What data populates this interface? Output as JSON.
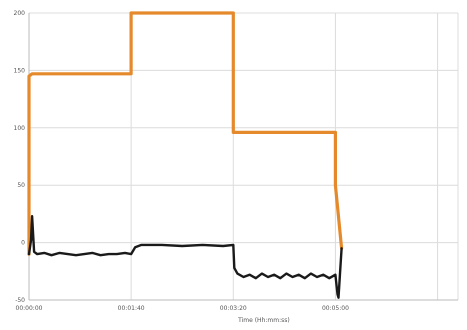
{
  "chart_data": {
    "type": "line",
    "xlabel": "Time (Hh:mm:ss)",
    "ylabel": "",
    "xlim": [
      0,
      420
    ],
    "ylim": [
      -50,
      200
    ],
    "x_ticks": [
      {
        "value": 0,
        "label": "00:00:00"
      },
      {
        "value": 100,
        "label": "00:01:40"
      },
      {
        "value": 200,
        "label": "00:03:20"
      },
      {
        "value": 300,
        "label": "00:05:00"
      }
    ],
    "y_ticks": [
      {
        "value": 200,
        "label": "200"
      },
      {
        "value": 150,
        "label": "150"
      },
      {
        "value": 100,
        "label": "100"
      },
      {
        "value": 50,
        "label": "50"
      },
      {
        "value": 0,
        "label": "0"
      },
      {
        "value": -50,
        "label": "-50"
      }
    ],
    "grid": true,
    "series": [
      {
        "color": "#e58a2c",
        "x": [
          0,
          0,
          3,
          100,
          100,
          200,
          200,
          300,
          300,
          306
        ],
        "y": [
          -10,
          145,
          147,
          147,
          200,
          200,
          96,
          96,
          50,
          -5
        ]
      },
      {
        "color": "#1a1a1a",
        "x": [
          0,
          2,
          3,
          5,
          8,
          15,
          22,
          30,
          38,
          46,
          54,
          62,
          70,
          78,
          86,
          94,
          100,
          104,
          110,
          130,
          150,
          170,
          190,
          200,
          201,
          204,
          210,
          216,
          222,
          228,
          234,
          240,
          246,
          252,
          258,
          264,
          270,
          276,
          282,
          288,
          294,
          300,
          302,
          303,
          305,
          306
        ],
        "y": [
          -10,
          2,
          23,
          -8,
          -10,
          -9,
          -11,
          -9,
          -10,
          -11,
          -10,
          -9,
          -11,
          -10,
          -10,
          -9,
          -10,
          -4,
          -2,
          -2,
          -3,
          -2,
          -3,
          -2,
          -22,
          -27,
          -30,
          -28,
          -31,
          -27,
          -30,
          -28,
          -31,
          -27,
          -30,
          -28,
          -31,
          -27,
          -30,
          -28,
          -31,
          -28,
          -45,
          -48,
          -20,
          -5
        ]
      }
    ]
  }
}
